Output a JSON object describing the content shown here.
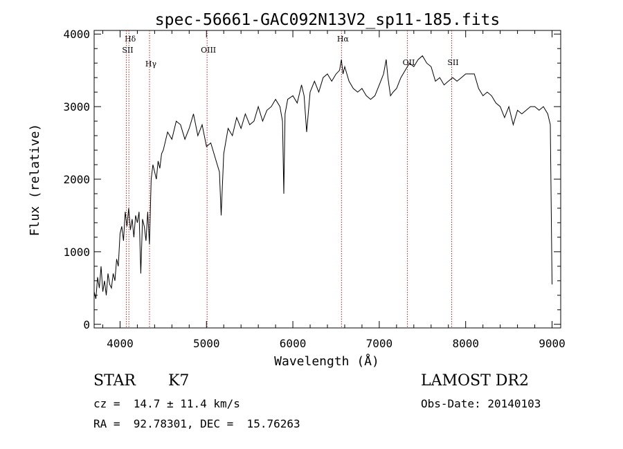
{
  "chart_data": {
    "type": "line",
    "title": "spec-56661-GAC092N13V2_sp11-185.fits",
    "xlabel": "Wavelength (Å)",
    "ylabel": "Flux (relative)",
    "xlim": [
      3700,
      9100
    ],
    "ylim": [
      -50,
      4050
    ],
    "x_ticks": [
      4000,
      5000,
      6000,
      7000,
      8000,
      9000
    ],
    "y_ticks": [
      0,
      1000,
      2000,
      3000,
      4000
    ],
    "grid": false,
    "line_color": "#000000",
    "marker_color": "#b22222",
    "series": [
      {
        "x": [
          3700,
          3720,
          3740,
          3760,
          3780,
          3800,
          3820,
          3840,
          3860,
          3880,
          3900,
          3920,
          3940,
          3960,
          3980,
          4000,
          4020,
          4040,
          4060,
          4080,
          4100,
          4120,
          4140,
          4160,
          4180,
          4200,
          4220,
          4240,
          4260,
          4280,
          4300,
          4320,
          4340,
          4360,
          4380,
          4400,
          4420,
          4440,
          4460,
          4480,
          4500,
          4550,
          4600,
          4650,
          4700,
          4750,
          4800,
          4850,
          4900,
          4950,
          5000,
          5050,
          5100,
          5150,
          5170,
          5200,
          5250,
          5300,
          5350,
          5400,
          5450,
          5500,
          5550,
          5600,
          5650,
          5700,
          5750,
          5800,
          5850,
          5880,
          5895,
          5910,
          5940,
          6000,
          6050,
          6100,
          6130,
          6160,
          6200,
          6250,
          6300,
          6350,
          6400,
          6450,
          6500,
          6540,
          6562,
          6580,
          6600,
          6650,
          6700,
          6750,
          6800,
          6850,
          6900,
          6950,
          7000,
          7050,
          7080,
          7100,
          7130,
          7160,
          7200,
          7250,
          7300,
          7350,
          7400,
          7450,
          7500,
          7550,
          7600,
          7650,
          7700,
          7750,
          7800,
          7850,
          7900,
          7950,
          8000,
          8050,
          8100,
          8150,
          8200,
          8250,
          8300,
          8350,
          8400,
          8450,
          8500,
          8550,
          8600,
          8650,
          8700,
          8750,
          8800,
          8850,
          8900,
          8950,
          8980,
          9000
        ],
        "y": [
          450,
          350,
          650,
          500,
          800,
          450,
          600,
          400,
          700,
          550,
          500,
          700,
          600,
          900,
          800,
          1250,
          1350,
          1150,
          1550,
          1350,
          1600,
          1300,
          1450,
          1200,
          1500,
          1400,
          1550,
          700,
          1450,
          1350,
          1150,
          1550,
          1100,
          2000,
          2200,
          2100,
          2000,
          2250,
          2150,
          2350,
          2400,
          2650,
          2550,
          2800,
          2750,
          2550,
          2700,
          2900,
          2600,
          2750,
          2450,
          2500,
          2300,
          2100,
          1500,
          2350,
          2700,
          2600,
          2850,
          2700,
          2900,
          2750,
          2800,
          3000,
          2800,
          2950,
          3000,
          3100,
          3000,
          2800,
          1800,
          2900,
          3100,
          3150,
          3050,
          3300,
          3150,
          2650,
          3200,
          3350,
          3200,
          3400,
          3450,
          3350,
          3450,
          3500,
          3650,
          3450,
          3550,
          3350,
          3250,
          3200,
          3250,
          3150,
          3100,
          3150,
          3300,
          3450,
          3650,
          3400,
          3150,
          3200,
          3250,
          3400,
          3500,
          3600,
          3550,
          3650,
          3700,
          3600,
          3550,
          3350,
          3400,
          3300,
          3350,
          3400,
          3350,
          3400,
          3450,
          3450,
          3450,
          3250,
          3150,
          3200,
          3150,
          3050,
          3000,
          2850,
          3000,
          2750,
          2950,
          2900,
          2950,
          3000,
          3000,
          2950,
          3000,
          2900,
          2750,
          550
        ]
      }
    ],
    "line_markers": [
      {
        "label": "Hδ",
        "x": 4102
      },
      {
        "label": "SII",
        "x": 4072
      },
      {
        "label": "Hγ",
        "x": 4341
      },
      {
        "label": "OIII",
        "x": 5007
      },
      {
        "label": "Hα",
        "x": 6563
      },
      {
        "label": "OII",
        "x": 7325
      },
      {
        "label": "SII",
        "x": 7838
      }
    ]
  },
  "info": {
    "object_class": "STAR",
    "subclass": "K7",
    "survey": "LAMOST DR2",
    "redshift": "cz =  14.7 ± 11.4 km/s",
    "obs_date": "Obs-Date: 20140103",
    "coords": "RA =  92.78301, DEC =  15.76263"
  }
}
